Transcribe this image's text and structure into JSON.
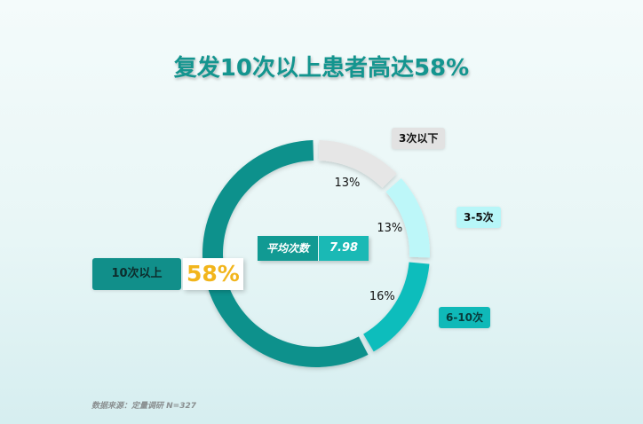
{
  "title": "复发10次以上患者高达58%",
  "chart_data": {
    "type": "pie",
    "title": "复发10次以上患者高达58%",
    "slices": [
      {
        "label": "3次以下",
        "value": 13,
        "display": "13%",
        "color": "#e6e6e6"
      },
      {
        "label": "3-5次",
        "value": 13,
        "display": "13%",
        "color": "#bdf7f9"
      },
      {
        "label": "6-10次",
        "value": 16,
        "display": "16%",
        "color": "#10bdbc"
      },
      {
        "label": "10次以上",
        "value": 58,
        "display": "58%",
        "color": "#11918c"
      }
    ],
    "center_label": "平均次数",
    "center_value": "7.98"
  },
  "source": "数据来源：定量调研 N=327"
}
